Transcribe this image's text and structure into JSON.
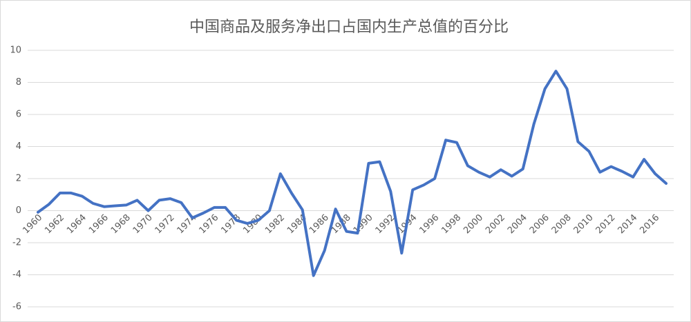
{
  "chart_data": {
    "type": "line",
    "title": "中国商品及服务净出口占国内生产总值的百分比",
    "categories": [
      "1960",
      null,
      "1962",
      null,
      "1964",
      null,
      "1966",
      null,
      "1968",
      null,
      "1970",
      null,
      "1972",
      null,
      "1974",
      null,
      "1976",
      null,
      "1978",
      null,
      "1980",
      null,
      "1982",
      null,
      "1984",
      null,
      "1986",
      null,
      "1988",
      null,
      "1990",
      null,
      "1992",
      null,
      "1994",
      null,
      "1996",
      null,
      "1998",
      null,
      "2000",
      null,
      "2002",
      null,
      "2004",
      null,
      "2006",
      null,
      "2008",
      null,
      "2010",
      null,
      "2012",
      null,
      "2014",
      null,
      "2016",
      null
    ],
    "series": [
      {
        "color": "#4472c4",
        "values": [
          -0.1,
          0.4,
          1.1,
          1.1,
          0.9,
          0.45,
          0.25,
          0.3,
          0.35,
          0.65,
          0.0,
          0.65,
          0.75,
          0.5,
          -0.45,
          -0.15,
          0.2,
          0.2,
          -0.6,
          -0.8,
          -0.6,
          0.0,
          2.3,
          1.1,
          0.05,
          -4.05,
          -2.5,
          0.1,
          -1.3,
          -1.4,
          2.95,
          3.05,
          1.2,
          -2.65,
          1.3,
          1.6,
          2.0,
          4.4,
          4.25,
          2.8,
          2.4,
          2.1,
          2.55,
          2.15,
          2.6,
          5.4,
          7.6,
          8.7,
          7.6,
          4.3,
          3.7,
          2.4,
          2.75,
          2.45,
          2.1,
          3.2,
          2.3,
          1.7
        ]
      }
    ],
    "ylim": [
      -6,
      10
    ],
    "yticks": [
      -6,
      -4,
      -2,
      0,
      2,
      4,
      6,
      8,
      10
    ],
    "grid": true
  }
}
